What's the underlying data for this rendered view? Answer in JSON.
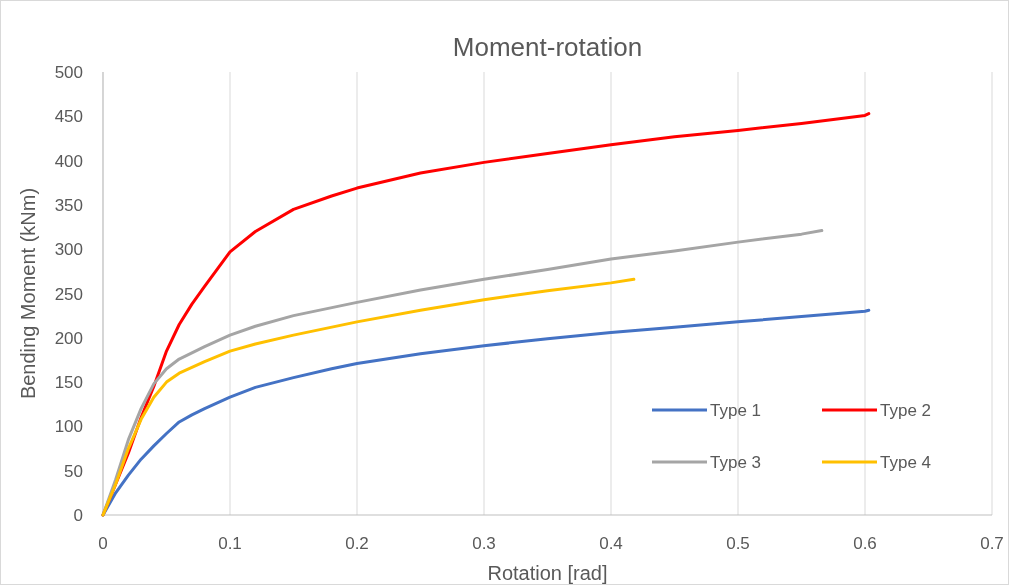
{
  "chart_data": {
    "type": "line",
    "title": "Moment-rotation",
    "xlabel": "Rotation [rad]",
    "ylabel": "Bending Moment (kNm)",
    "xlim": [
      0,
      0.7
    ],
    "xticks": [
      0,
      0.1,
      0.2,
      0.3,
      0.4,
      0.5,
      0.6,
      0.7
    ],
    "ylim": [
      0,
      500
    ],
    "yticks": [
      0,
      50,
      100,
      150,
      200,
      250,
      300,
      350,
      400,
      450,
      500
    ],
    "grid": "x",
    "legend": "bottom right",
    "line_style": "solid",
    "marker": "none",
    "series": [
      {
        "name": "Type 1",
        "color": "#4472c4",
        "x": [
          0,
          0.01,
          0.02,
          0.03,
          0.04,
          0.05,
          0.06,
          0.07,
          0.08,
          0.1,
          0.12,
          0.15,
          0.18,
          0.2,
          0.25,
          0.3,
          0.35,
          0.4,
          0.45,
          0.5,
          0.55,
          0.6,
          0.603
        ],
        "values": [
          0,
          25,
          45,
          63,
          78,
          92,
          105,
          113,
          120,
          133,
          144,
          155,
          165,
          171,
          182,
          191,
          199,
          206,
          212,
          218,
          224,
          230,
          231
        ]
      },
      {
        "name": "Type 2",
        "color": "#ff0000",
        "x": [
          0,
          0.02,
          0.03,
          0.04,
          0.05,
          0.06,
          0.07,
          0.08,
          0.1,
          0.12,
          0.15,
          0.18,
          0.2,
          0.25,
          0.3,
          0.35,
          0.4,
          0.45,
          0.5,
          0.55,
          0.6,
          0.603
        ],
        "values": [
          0,
          70,
          110,
          145,
          185,
          215,
          238,
          258,
          297,
          320,
          345,
          360,
          369,
          386,
          398,
          408,
          418,
          427,
          434,
          442,
          451,
          453
        ]
      },
      {
        "name": "Type 3",
        "color": "#a5a5a5",
        "x": [
          0,
          0.01,
          0.02,
          0.03,
          0.04,
          0.05,
          0.06,
          0.08,
          0.1,
          0.12,
          0.15,
          0.2,
          0.25,
          0.3,
          0.35,
          0.4,
          0.45,
          0.5,
          0.55,
          0.566
        ],
        "values": [
          0,
          40,
          85,
          120,
          148,
          165,
          176,
          190,
          203,
          213,
          225,
          240,
          254,
          266,
          277,
          289,
          298,
          308,
          317,
          321
        ]
      },
      {
        "name": "Type 4",
        "color": "#ffc000",
        "x": [
          0,
          0.01,
          0.02,
          0.03,
          0.04,
          0.05,
          0.06,
          0.08,
          0.1,
          0.12,
          0.15,
          0.2,
          0.25,
          0.3,
          0.35,
          0.4,
          0.418
        ],
        "values": [
          0,
          35,
          75,
          108,
          133,
          150,
          160,
          173,
          185,
          193,
          203,
          218,
          231,
          243,
          253,
          262,
          266
        ]
      }
    ]
  }
}
